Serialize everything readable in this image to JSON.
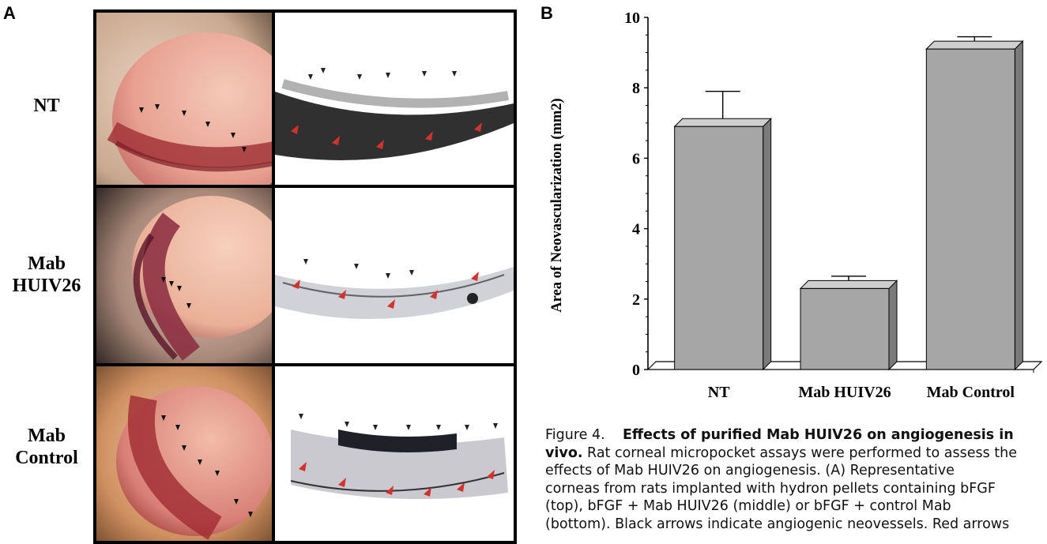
{
  "panel_a": {
    "letter": "A",
    "rows": [
      {
        "label_lines": [
          "NT"
        ]
      },
      {
        "label_lines": [
          "Mab",
          "HUIV26"
        ]
      },
      {
        "label_lines": [
          "Mab",
          "Control"
        ]
      }
    ]
  },
  "panel_b": {
    "letter": "B"
  },
  "chart_data": {
    "type": "bar",
    "categories": [
      "NT",
      "Mab HUIV26",
      "Mab Control"
    ],
    "values": [
      6.9,
      2.3,
      9.1
    ],
    "errors": [
      1.0,
      0.35,
      0.35
    ],
    "xlabel": "",
    "ylabel": "Area of Neovascularization (mm2)",
    "ylim": [
      0,
      10
    ],
    "yticks": [
      "0",
      "2",
      "4",
      "6",
      "8",
      "10"
    ],
    "style": "3d",
    "bar_color": "#a6a6a6"
  },
  "caption": {
    "figure_label": "Figure 4.",
    "title": "Effects of purified Mab HUIV26 on angiogenesis in vivo.",
    "line1_bold": "Effects of purified Mab HUIV26 on angiogenesis in",
    "line2_bold": "vivo.",
    "line2_rest": " Rat corneal micropocket assays were performed to assess the",
    "line3": "effects of Mab HUIV26 on angiogenesis. (A) Representative",
    "line4": "corneas from rats implanted with hydron pellets containing bFGF",
    "line5": "(top), bFGF + Mab HUIV26 (middle) or bFGF + control Mab",
    "line6": "(bottom). Black arrows indicate angiogenic neovessels. Red arrows"
  }
}
